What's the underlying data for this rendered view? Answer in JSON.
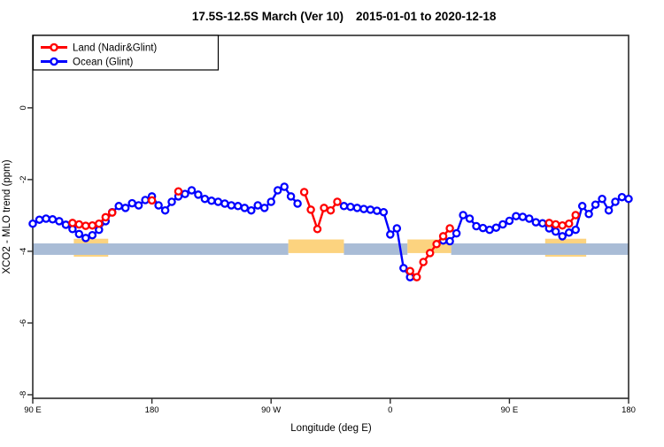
{
  "chart_data": {
    "type": "line",
    "title_left": "17.5S-12.5S March (Ver 10)",
    "title_right": "2015-01-01 to 2020-12-18",
    "xlabel": "Longitude (deg E)",
    "ylabel": "XCO2 - MLO trend (ppm)",
    "xlim": [
      90,
      540
    ],
    "ylim": [
      -8.1,
      2.02
    ],
    "grid": false,
    "legend_position": "top-left",
    "x_ticks": [
      {
        "v": 90,
        "label": "90 E"
      },
      {
        "v": 180,
        "label": "180"
      },
      {
        "v": 270,
        "label": "90 W"
      },
      {
        "v": 360,
        "label": "0"
      },
      {
        "v": 450,
        "label": "90 E"
      },
      {
        "v": 540,
        "label": "180"
      }
    ],
    "y_ticks": [
      {
        "v": 0,
        "label": "0"
      },
      {
        "v": -2,
        "label": "-2"
      },
      {
        "v": -4,
        "label": "-4"
      },
      {
        "v": -6,
        "label": "-6"
      },
      {
        "v": -8,
        "label": "-8"
      }
    ],
    "bands": [
      {
        "name": "land-highlight-band-back",
        "color": "#fcd37f",
        "from": -3.65,
        "to": -4.15,
        "x_segments": [
          [
            121,
            147
          ],
          [
            477,
            508
          ]
        ]
      },
      {
        "name": "ocean-reference-band",
        "color": "#a9bcd6",
        "from": -3.78,
        "to": -4.1,
        "x_segments": [
          [
            90,
            283
          ],
          [
            325,
            373
          ],
          [
            406,
            540
          ]
        ]
      },
      {
        "name": "land-highlight-band-front",
        "color": "#fcd37f",
        "from": -3.67,
        "to": -4.05,
        "x_segments": [
          [
            283,
            325
          ],
          [
            373,
            406
          ]
        ]
      }
    ],
    "series": [
      {
        "name": "Land (Nadir&Glint)",
        "color": "#ff0000",
        "segments": [
          [
            [
              120,
              -3.21
            ],
            [
              125,
              -3.25
            ],
            [
              130,
              -3.29
            ],
            [
              135,
              -3.28
            ],
            [
              140,
              -3.23
            ],
            [
              145,
              -3.05
            ],
            [
              150,
              -2.92
            ]
          ],
          [
            [
              180,
              -2.58
            ]
          ],
          [
            [
              200,
              -2.33
            ]
          ],
          [
            [
              295,
              -2.35
            ],
            [
              300,
              -2.84
            ],
            [
              305,
              -3.38
            ],
            [
              310,
              -2.79
            ],
            [
              315,
              -2.86
            ],
            [
              320,
              -2.62
            ]
          ],
          [
            [
              375,
              -4.55
            ],
            [
              380,
              -4.72
            ],
            [
              385,
              -4.3
            ],
            [
              390,
              -4.05
            ],
            [
              395,
              -3.8
            ],
            [
              400,
              -3.58
            ],
            [
              405,
              -3.36
            ]
          ],
          [
            [
              480,
              -3.21
            ],
            [
              485,
              -3.25
            ],
            [
              490,
              -3.28
            ],
            [
              495,
              -3.23
            ],
            [
              500,
              -2.99
            ]
          ]
        ]
      },
      {
        "name": "Ocean (Glint)",
        "color": "#0000ff",
        "points": [
          [
            90,
            -3.23
          ],
          [
            95,
            -3.12
          ],
          [
            100,
            -3.09
          ],
          [
            105,
            -3.11
          ],
          [
            110,
            -3.16
          ],
          [
            115,
            -3.26
          ],
          [
            120,
            -3.38
          ],
          [
            125,
            -3.52
          ],
          [
            130,
            -3.63
          ],
          [
            135,
            -3.55
          ],
          [
            140,
            -3.4
          ],
          [
            145,
            -3.16
          ],
          [
            150,
            -2.91
          ],
          [
            155,
            -2.74
          ],
          [
            160,
            -2.79
          ],
          [
            165,
            -2.66
          ],
          [
            170,
            -2.72
          ],
          [
            175,
            -2.57
          ],
          [
            180,
            -2.47
          ],
          [
            185,
            -2.72
          ],
          [
            190,
            -2.86
          ],
          [
            195,
            -2.62
          ],
          [
            200,
            -2.47
          ],
          [
            205,
            -2.4
          ],
          [
            210,
            -2.3
          ],
          [
            215,
            -2.42
          ],
          [
            220,
            -2.54
          ],
          [
            225,
            -2.59
          ],
          [
            230,
            -2.62
          ],
          [
            235,
            -2.67
          ],
          [
            240,
            -2.72
          ],
          [
            245,
            -2.74
          ],
          [
            250,
            -2.79
          ],
          [
            255,
            -2.86
          ],
          [
            260,
            -2.72
          ],
          [
            265,
            -2.79
          ],
          [
            270,
            -2.62
          ],
          [
            275,
            -2.3
          ],
          [
            280,
            -2.2
          ],
          [
            285,
            -2.47
          ],
          [
            290,
            -2.67
          ],
          [
            295,
            null
          ],
          [
            300,
            null
          ],
          [
            305,
            null
          ],
          [
            310,
            null
          ],
          [
            315,
            null
          ],
          [
            320,
            null
          ],
          [
            325,
            -2.74
          ],
          [
            330,
            -2.76
          ],
          [
            335,
            -2.79
          ],
          [
            340,
            -2.82
          ],
          [
            345,
            -2.84
          ],
          [
            350,
            -2.87
          ],
          [
            355,
            -2.91
          ],
          [
            360,
            -3.53
          ],
          [
            365,
            -3.36
          ],
          [
            370,
            -4.47
          ],
          [
            375,
            -4.72
          ],
          [
            380,
            null
          ],
          [
            385,
            null
          ],
          [
            390,
            null
          ],
          [
            395,
            null
          ],
          [
            400,
            -3.7
          ],
          [
            405,
            -3.72
          ],
          [
            410,
            -3.5
          ],
          [
            415,
            -2.99
          ],
          [
            420,
            -3.09
          ],
          [
            425,
            -3.3
          ],
          [
            430,
            -3.35
          ],
          [
            435,
            -3.4
          ],
          [
            440,
            -3.34
          ],
          [
            445,
            -3.25
          ],
          [
            450,
            -3.15
          ],
          [
            455,
            -3.02
          ],
          [
            460,
            -3.04
          ],
          [
            465,
            -3.09
          ],
          [
            470,
            -3.19
          ],
          [
            475,
            -3.22
          ],
          [
            480,
            -3.36
          ],
          [
            485,
            -3.45
          ],
          [
            490,
            -3.58
          ],
          [
            495,
            -3.48
          ],
          [
            500,
            -3.4
          ],
          [
            505,
            -2.74
          ],
          [
            510,
            -2.96
          ],
          [
            515,
            -2.7
          ],
          [
            520,
            -2.54
          ],
          [
            525,
            -2.86
          ],
          [
            530,
            -2.62
          ],
          [
            535,
            -2.49
          ],
          [
            540,
            -2.54
          ]
        ]
      }
    ]
  }
}
